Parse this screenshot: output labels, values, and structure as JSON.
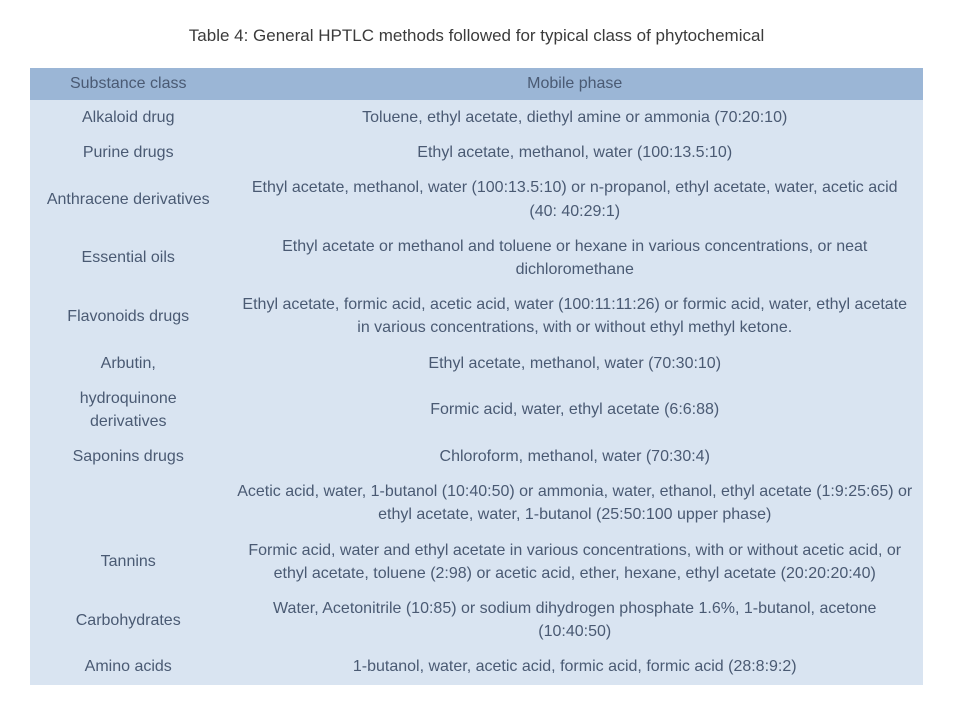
{
  "title": "Table 4: General HPTLC methods followed for typical class of phytochemical",
  "colors": {
    "header_bg": "#9bb6d6",
    "row_bg": "#d9e4f1",
    "text": "#4a5a73",
    "title_text": "#3b3b3b",
    "page_bg": "#ffffff"
  },
  "typography": {
    "title_fontsize_pt": 13,
    "cell_fontsize_pt": 12,
    "font_family": "Verdana"
  },
  "layout": {
    "col1_width_pct": 22,
    "col2_width_pct": 78
  },
  "columns": [
    "Substance class",
    "Mobile phase"
  ],
  "rows": [
    {
      "class": "Alkaloid drug",
      "phase": "Toluene, ethyl acetate, diethyl amine or ammonia (70:20:10)"
    },
    {
      "class": "Purine drugs",
      "phase": "Ethyl acetate, methanol, water (100:13.5:10)"
    },
    {
      "class": "Anthracene derivatives",
      "phase": "Ethyl acetate, methanol, water (100:13.5:10) or n-propanol, ethyl acetate, water, acetic acid (40: 40:29:1)"
    },
    {
      "class": "Essential oils",
      "phase": "Ethyl acetate or methanol and toluene or hexane in various concentrations, or neat dichloromethane"
    },
    {
      "class": "Flavonoids drugs",
      "phase": "Ethyl acetate, formic acid, acetic acid, water (100:11:11:26) or formic acid, water, ethyl acetate in various concentrations, with or without ethyl methyl ketone."
    },
    {
      "class": "Arbutin,",
      "phase": "Ethyl acetate, methanol, water (70:30:10)"
    },
    {
      "class": "hydroquinone derivatives",
      "phase": "Formic acid, water, ethyl acetate (6:6:88)"
    },
    {
      "class": "Saponins drugs",
      "phase": "Chloroform, methanol, water (70:30:4)"
    },
    {
      "class": "",
      "phase": "Acetic acid, water, 1-butanol (10:40:50) or ammonia, water, ethanol, ethyl acetate (1:9:25:65) or ethyl acetate, water, 1-butanol (25:50:100 upper phase)"
    },
    {
      "class": "Tannins",
      "phase": "Formic acid, water and ethyl acetate in various concentrations, with or without acetic acid, or ethyl acetate, toluene (2:98) or acetic acid, ether, hexane, ethyl acetate (20:20:20:40)"
    },
    {
      "class": "Carbohydrates",
      "phase": "Water, Acetonitrile (10:85) or sodium dihydrogen phosphate 1.6%, 1-butanol, acetone (10:40:50)"
    },
    {
      "class": "Amino acids",
      "phase": "1-butanol, water, acetic acid, formic acid, formic acid (28:8:9:2)"
    }
  ]
}
